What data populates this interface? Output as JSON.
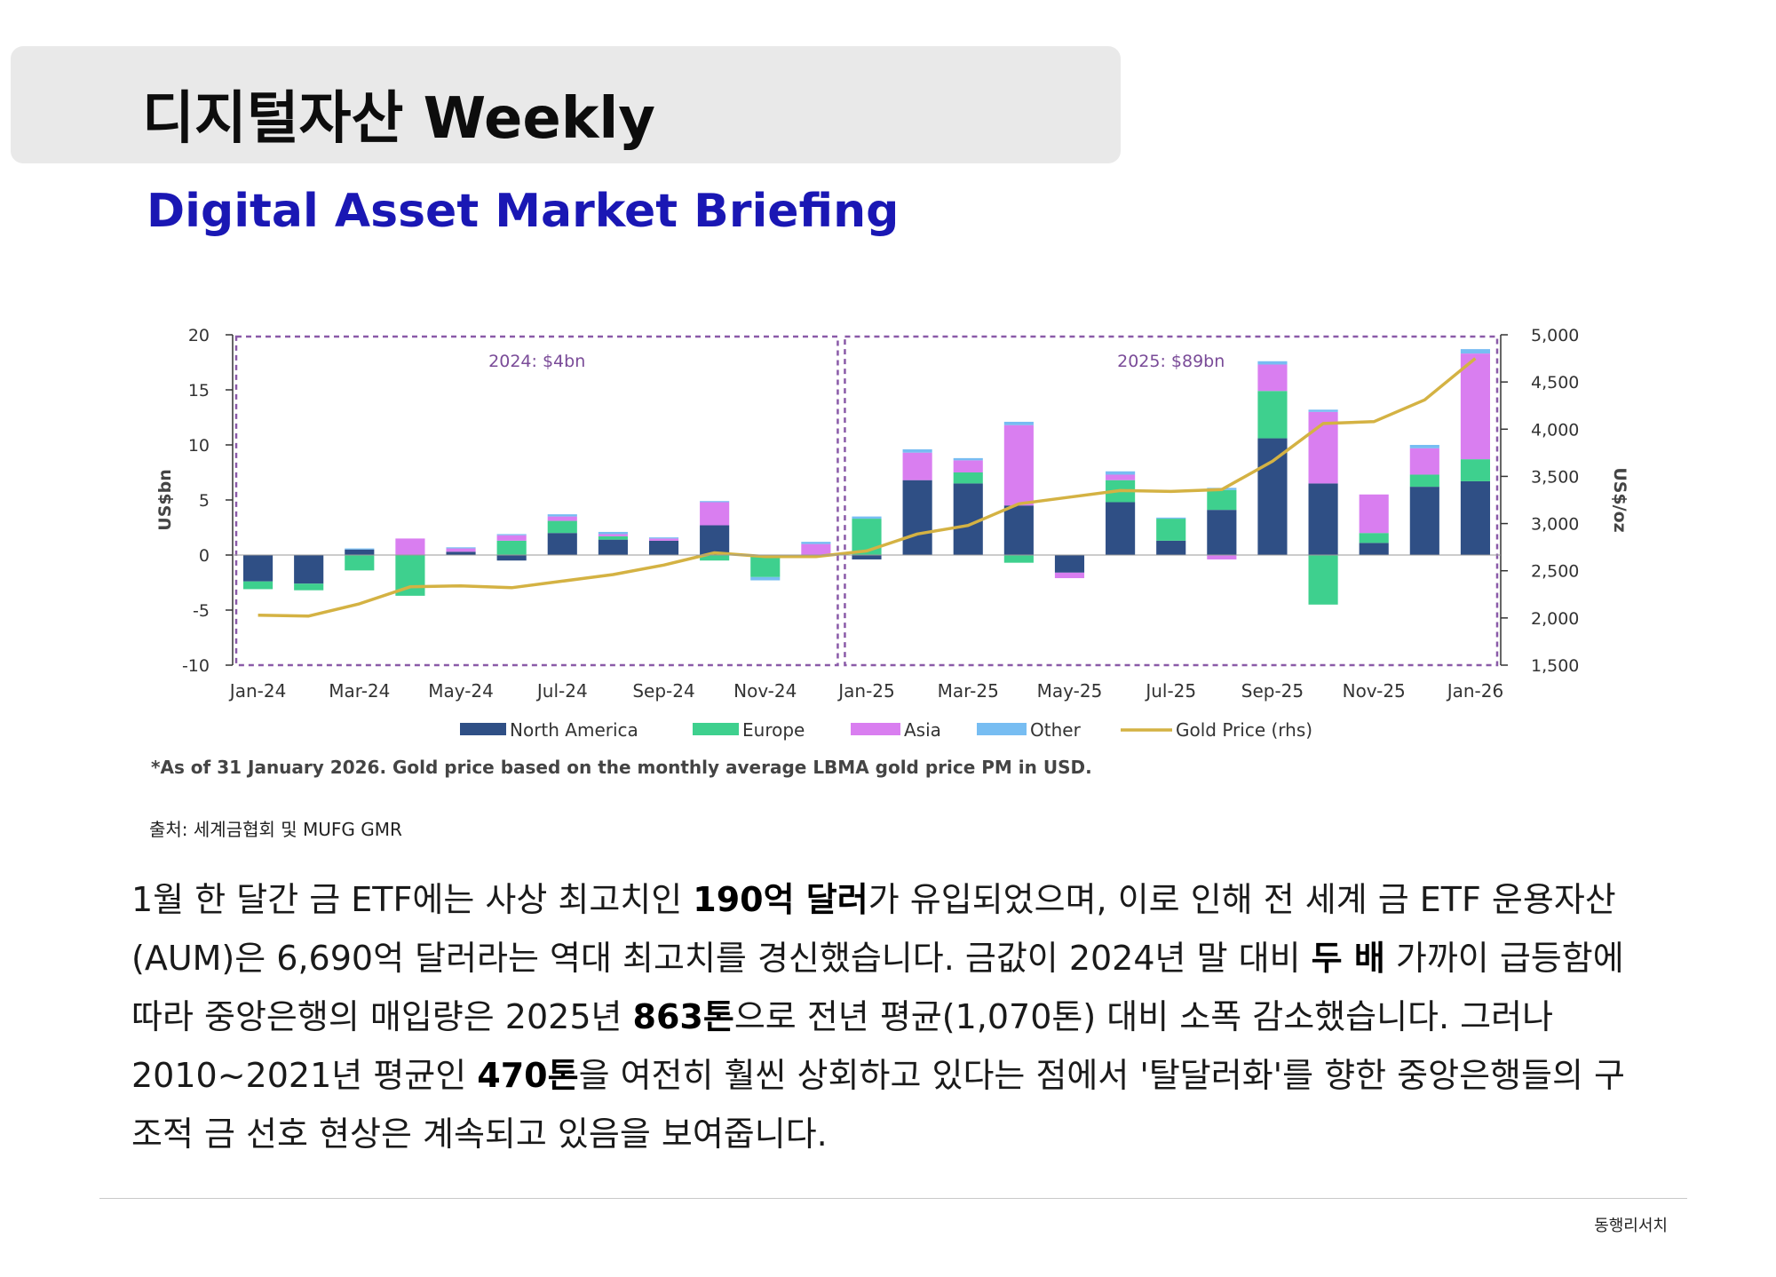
{
  "header": {
    "title": "디지털자산 Weekly",
    "subtitle": "Digital Asset Market Briefing"
  },
  "chart_data": {
    "type": "bar",
    "stacked": true,
    "categories": [
      "Jan-24",
      "Feb-24",
      "Mar-24",
      "Apr-24",
      "May-24",
      "Jun-24",
      "Jul-24",
      "Aug-24",
      "Sep-24",
      "Oct-24",
      "Nov-24",
      "Dec-24",
      "Jan-25",
      "Feb-25",
      "Mar-25",
      "Apr-25",
      "May-25",
      "Jun-25",
      "Jul-25",
      "Aug-25",
      "Sep-25",
      "Oct-25",
      "Nov-25",
      "Dec-25",
      "Jan-26"
    ],
    "x_tick_labels": [
      "Jan-24",
      "Mar-24",
      "May-24",
      "Jul-24",
      "Sep-24",
      "Nov-24",
      "Jan-25",
      "Mar-25",
      "May-25",
      "Jul-25",
      "Sep-25",
      "Nov-25",
      "Jan-26"
    ],
    "series": [
      {
        "name": "North America",
        "color": "#2f4f85",
        "values": [
          -2.4,
          -2.6,
          0.5,
          0,
          0.3,
          -0.5,
          2.0,
          1.4,
          1.3,
          2.7,
          0,
          0,
          -0.4,
          6.8,
          6.5,
          4.5,
          -1.6,
          4.8,
          1.3,
          4.1,
          10.6,
          6.5,
          1.1,
          6.2,
          6.7
        ]
      },
      {
        "name": "Europe",
        "color": "#3ed08e",
        "values": [
          -0.7,
          -0.6,
          -1.4,
          -3.7,
          0,
          1.3,
          1.1,
          0.3,
          0,
          -0.5,
          -2.0,
          0,
          3.3,
          0,
          1.0,
          -0.7,
          0,
          2.0,
          2.0,
          1.8,
          4.3,
          -4.5,
          0.9,
          1.1,
          2.0
        ]
      },
      {
        "name": "Asia",
        "color": "#d97ef0",
        "values": [
          0,
          0,
          0,
          1.5,
          0.3,
          0.5,
          0.4,
          0.2,
          0.2,
          2.1,
          0,
          1.0,
          0,
          2.5,
          1.1,
          7.3,
          -0.5,
          0.5,
          0,
          -0.4,
          2.4,
          6.5,
          3.5,
          2.4,
          9.6
        ]
      },
      {
        "name": "Other",
        "color": "#77bdf2",
        "values": [
          0,
          0,
          0.1,
          0,
          0.1,
          0.1,
          0.2,
          0.2,
          0.1,
          0.1,
          -0.3,
          0.2,
          0.2,
          0.3,
          0.2,
          0.3,
          0,
          0.3,
          0.1,
          0.2,
          0.3,
          0.2,
          0,
          0.3,
          0.4
        ]
      }
    ],
    "line": {
      "name": "Gold Price (rhs)",
      "color": "#d4b243",
      "axis": "right",
      "values": [
        2030,
        2020,
        2150,
        2330,
        2340,
        2320,
        2390,
        2460,
        2560,
        2690,
        2650,
        2650,
        2710,
        2890,
        2980,
        3210,
        3280,
        3350,
        3340,
        3360,
        3660,
        4060,
        4080,
        4310,
        4750
      ]
    },
    "y_left": {
      "label": "US$bn",
      "min": -10,
      "max": 20,
      "ticks": [
        "20",
        "15",
        "10",
        "5",
        "0",
        "-5",
        "-10"
      ]
    },
    "y_right": {
      "label": "US$/oz",
      "min": 1500,
      "max": 5000,
      "ticks": [
        "5,000",
        "4,500",
        "4,000",
        "3,500",
        "3,000",
        "2,500",
        "2,000",
        "1,500"
      ]
    },
    "annotations": [
      "2024: $4bn",
      "2025: $89bn"
    ],
    "legend": [
      "North America",
      "Europe",
      "Asia",
      "Other",
      "Gold Price (rhs)"
    ],
    "legend_position": "bottom",
    "grid": false,
    "note": "*As of 31 January 2026. Gold price based on the monthly average LBMA gold price PM in USD."
  },
  "source": "출처: 세계금협회 및 MUFG GMR",
  "body": [
    {
      "t": "1월 한 달간 금 ETF에는 사상 최고치인 ",
      "b": false
    },
    {
      "t": "190억 달러",
      "b": true
    },
    {
      "t": "가 유입되었으며, 이로 인해 전 세계 금 ETF 운용자산(AUM)은 6,690억 달러라는 역대 최고치를 경신했습니다. 금값이 2024년 말 대비 ",
      "b": false
    },
    {
      "t": "두 배",
      "b": true
    },
    {
      "t": " 가까이 급등함에 따라 중앙은행의 매입량은 2025년 ",
      "b": false
    },
    {
      "t": "863톤",
      "b": true
    },
    {
      "t": "으로 전년 평균(1,070톤) 대비 소폭 감소했습니다. 그러나 2010~2021년 평균인 ",
      "b": false
    },
    {
      "t": "470톤",
      "b": true
    },
    {
      "t": "을 여전히 훨씬 상회하고 있다는 점에서 '탈달러화'를 향한 중앙은행들의 구조적 금 선호 현상은 계속되고 있음을 보여줍니다.",
      "b": false
    }
  ],
  "footer": {
    "brand": "동행리서치"
  }
}
